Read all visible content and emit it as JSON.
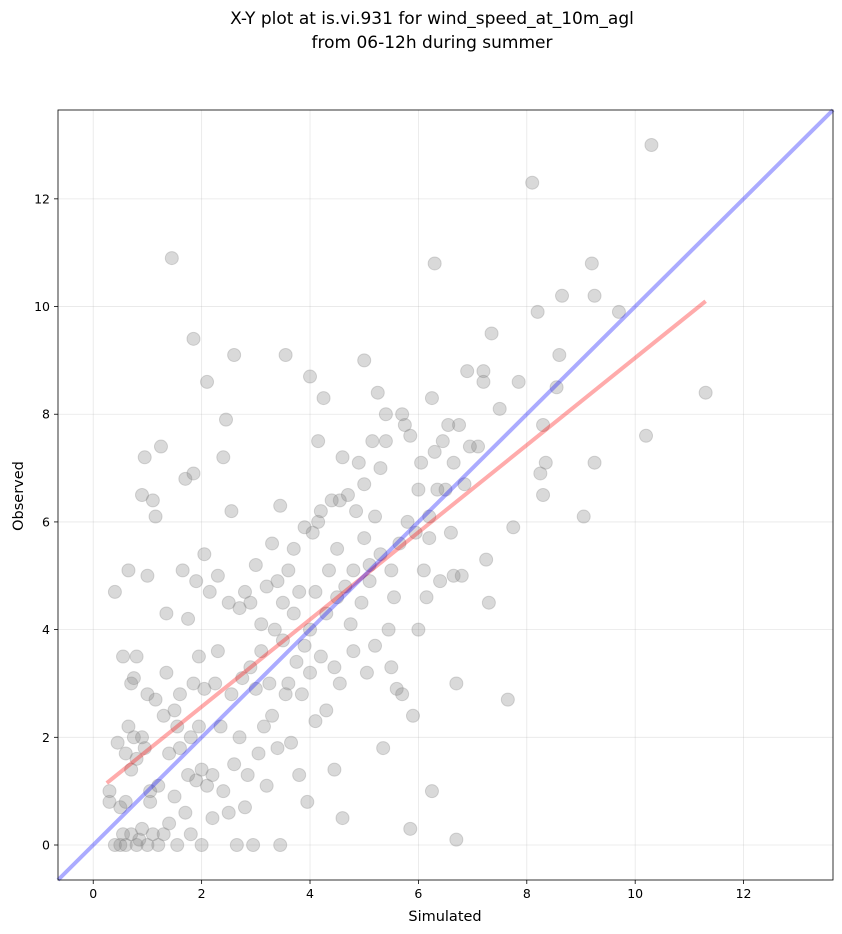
{
  "chart_data": {
    "type": "scatter",
    "title": [
      "X-Y plot at is.vi.931 for wind_speed_at_10m_agl",
      "from 06-12h during summer"
    ],
    "xlabel": "Simulated",
    "ylabel": "Observed",
    "xlim": [
      -0.65,
      13.65
    ],
    "ylim": [
      -0.65,
      13.65
    ],
    "xticks": [
      0,
      2,
      4,
      6,
      8,
      10,
      12
    ],
    "yticks": [
      0,
      2,
      4,
      6,
      8,
      10,
      12
    ],
    "grid": true,
    "point_color": "#808080",
    "points": [
      [
        0.3,
        1.0
      ],
      [
        0.3,
        0.8
      ],
      [
        0.4,
        0.0
      ],
      [
        0.4,
        4.7
      ],
      [
        0.45,
        1.9
      ],
      [
        0.5,
        0.7
      ],
      [
        0.5,
        0.0
      ],
      [
        0.55,
        0.2
      ],
      [
        0.55,
        3.5
      ],
      [
        0.6,
        0.8
      ],
      [
        0.6,
        0.0
      ],
      [
        0.6,
        1.7
      ],
      [
        0.65,
        5.1
      ],
      [
        0.65,
        2.2
      ],
      [
        0.7,
        1.4
      ],
      [
        0.7,
        0.2
      ],
      [
        0.7,
        3.0
      ],
      [
        0.75,
        3.1
      ],
      [
        0.75,
        2.0
      ],
      [
        0.8,
        0.0
      ],
      [
        0.8,
        3.5
      ],
      [
        0.8,
        1.6
      ],
      [
        0.85,
        0.1
      ],
      [
        0.9,
        6.5
      ],
      [
        0.9,
        2.0
      ],
      [
        0.9,
        0.3
      ],
      [
        0.95,
        7.2
      ],
      [
        0.95,
        1.8
      ],
      [
        1.0,
        2.8
      ],
      [
        1.0,
        0.0
      ],
      [
        1.0,
        5.0
      ],
      [
        1.05,
        1.0
      ],
      [
        1.05,
        0.8
      ],
      [
        1.1,
        0.2
      ],
      [
        1.1,
        6.4
      ],
      [
        1.15,
        6.1
      ],
      [
        1.15,
        2.7
      ],
      [
        1.2,
        1.1
      ],
      [
        1.2,
        0.0
      ],
      [
        1.25,
        7.4
      ],
      [
        1.3,
        2.4
      ],
      [
        1.3,
        0.2
      ],
      [
        1.35,
        4.3
      ],
      [
        1.35,
        3.2
      ],
      [
        1.4,
        1.7
      ],
      [
        1.4,
        0.4
      ],
      [
        1.45,
        10.9
      ],
      [
        1.5,
        2.5
      ],
      [
        1.5,
        0.9
      ],
      [
        1.55,
        0.0
      ],
      [
        1.55,
        2.2
      ],
      [
        1.6,
        1.8
      ],
      [
        1.6,
        2.8
      ],
      [
        1.65,
        5.1
      ],
      [
        1.7,
        0.6
      ],
      [
        1.7,
        6.8
      ],
      [
        1.75,
        4.2
      ],
      [
        1.75,
        1.3
      ],
      [
        1.8,
        2.0
      ],
      [
        1.8,
        0.2
      ],
      [
        1.85,
        6.9
      ],
      [
        1.85,
        9.4
      ],
      [
        1.85,
        3.0
      ],
      [
        1.9,
        1.2
      ],
      [
        1.9,
        4.9
      ],
      [
        1.95,
        3.5
      ],
      [
        1.95,
        2.2
      ],
      [
        2.0,
        0.0
      ],
      [
        2.0,
        1.4
      ],
      [
        2.05,
        5.4
      ],
      [
        2.05,
        2.9
      ],
      [
        2.1,
        1.1
      ],
      [
        2.1,
        8.6
      ],
      [
        2.15,
        4.7
      ],
      [
        2.2,
        0.5
      ],
      [
        2.2,
        1.3
      ],
      [
        2.25,
        3.0
      ],
      [
        2.3,
        5.0
      ],
      [
        2.3,
        3.6
      ],
      [
        2.35,
        2.2
      ],
      [
        2.4,
        1.0
      ],
      [
        2.4,
        7.2
      ],
      [
        2.45,
        7.9
      ],
      [
        2.5,
        0.6
      ],
      [
        2.5,
        4.5
      ],
      [
        2.55,
        2.8
      ],
      [
        2.55,
        6.2
      ],
      [
        2.6,
        9.1
      ],
      [
        2.6,
        1.5
      ],
      [
        2.65,
        0.0
      ],
      [
        2.7,
        2.0
      ],
      [
        2.7,
        4.4
      ],
      [
        2.75,
        3.1
      ],
      [
        2.8,
        0.7
      ],
      [
        2.8,
        4.7
      ],
      [
        2.85,
        1.3
      ],
      [
        2.9,
        3.3
      ],
      [
        2.9,
        4.5
      ],
      [
        2.95,
        0.0
      ],
      [
        3.0,
        5.2
      ],
      [
        3.0,
        2.9
      ],
      [
        3.05,
        1.7
      ],
      [
        3.1,
        3.6
      ],
      [
        3.1,
        4.1
      ],
      [
        3.15,
        2.2
      ],
      [
        3.2,
        1.1
      ],
      [
        3.2,
        4.8
      ],
      [
        3.25,
        3.0
      ],
      [
        3.3,
        5.6
      ],
      [
        3.3,
        2.4
      ],
      [
        3.35,
        4.0
      ],
      [
        3.4,
        4.9
      ],
      [
        3.4,
        1.8
      ],
      [
        3.45,
        0.0
      ],
      [
        3.45,
        6.3
      ],
      [
        3.5,
        3.8
      ],
      [
        3.5,
        4.5
      ],
      [
        3.55,
        9.1
      ],
      [
        3.55,
        2.8
      ],
      [
        3.6,
        3.0
      ],
      [
        3.6,
        5.1
      ],
      [
        3.65,
        1.9
      ],
      [
        3.7,
        4.3
      ],
      [
        3.7,
        5.5
      ],
      [
        3.75,
        3.4
      ],
      [
        3.8,
        1.3
      ],
      [
        3.8,
        4.7
      ],
      [
        3.85,
        2.8
      ],
      [
        3.9,
        5.9
      ],
      [
        3.9,
        3.7
      ],
      [
        3.95,
        0.8
      ],
      [
        4.0,
        4.0
      ],
      [
        4.0,
        8.7
      ],
      [
        4.0,
        3.2
      ],
      [
        4.05,
        5.8
      ],
      [
        4.1,
        2.3
      ],
      [
        4.1,
        4.7
      ],
      [
        4.15,
        6.0
      ],
      [
        4.15,
        7.5
      ],
      [
        4.2,
        3.5
      ],
      [
        4.2,
        6.2
      ],
      [
        4.25,
        8.3
      ],
      [
        4.3,
        4.3
      ],
      [
        4.3,
        2.5
      ],
      [
        4.35,
        5.1
      ],
      [
        4.4,
        6.4
      ],
      [
        4.45,
        3.3
      ],
      [
        4.45,
        1.4
      ],
      [
        4.5,
        5.5
      ],
      [
        4.5,
        4.6
      ],
      [
        4.55,
        6.4
      ],
      [
        4.55,
        3.0
      ],
      [
        4.6,
        7.2
      ],
      [
        4.6,
        0.5
      ],
      [
        4.65,
        4.8
      ],
      [
        4.7,
        6.5
      ],
      [
        4.75,
        4.1
      ],
      [
        4.8,
        3.6
      ],
      [
        4.8,
        5.1
      ],
      [
        4.85,
        6.2
      ],
      [
        4.9,
        7.1
      ],
      [
        4.95,
        4.5
      ],
      [
        5.0,
        5.7
      ],
      [
        5.0,
        6.7
      ],
      [
        5.0,
        9.0
      ],
      [
        5.05,
        3.2
      ],
      [
        5.1,
        5.2
      ],
      [
        5.1,
        4.9
      ],
      [
        5.15,
        7.5
      ],
      [
        5.2,
        6.1
      ],
      [
        5.2,
        3.7
      ],
      [
        5.25,
        8.4
      ],
      [
        5.3,
        7.0
      ],
      [
        5.3,
        5.4
      ],
      [
        5.35,
        1.8
      ],
      [
        5.4,
        8.0
      ],
      [
        5.4,
        7.5
      ],
      [
        5.45,
        4.0
      ],
      [
        5.5,
        5.1
      ],
      [
        5.5,
        3.3
      ],
      [
        5.55,
        4.6
      ],
      [
        5.6,
        2.9
      ],
      [
        5.65,
        5.6
      ],
      [
        5.7,
        8.0
      ],
      [
        5.7,
        2.8
      ],
      [
        5.75,
        7.8
      ],
      [
        5.8,
        6.0
      ],
      [
        5.85,
        0.3
      ],
      [
        5.85,
        7.6
      ],
      [
        5.9,
        2.4
      ],
      [
        5.95,
        5.8
      ],
      [
        6.0,
        4.0
      ],
      [
        6.0,
        6.6
      ],
      [
        6.05,
        7.1
      ],
      [
        6.1,
        5.1
      ],
      [
        6.15,
        4.6
      ],
      [
        6.2,
        5.7
      ],
      [
        6.2,
        6.1
      ],
      [
        6.25,
        8.3
      ],
      [
        6.25,
        1.0
      ],
      [
        6.3,
        10.8
      ],
      [
        6.3,
        7.3
      ],
      [
        6.35,
        6.6
      ],
      [
        6.4,
        4.9
      ],
      [
        6.45,
        7.5
      ],
      [
        6.5,
        6.6
      ],
      [
        6.55,
        7.8
      ],
      [
        6.6,
        5.8
      ],
      [
        6.65,
        5.0
      ],
      [
        6.65,
        7.1
      ],
      [
        6.7,
        3.0
      ],
      [
        6.7,
        0.1
      ],
      [
        6.75,
        7.8
      ],
      [
        6.8,
        5.0
      ],
      [
        6.85,
        6.7
      ],
      [
        6.9,
        8.8
      ],
      [
        6.95,
        7.4
      ],
      [
        7.1,
        7.4
      ],
      [
        7.2,
        8.8
      ],
      [
        7.2,
        8.6
      ],
      [
        7.25,
        5.3
      ],
      [
        7.3,
        4.5
      ],
      [
        7.35,
        9.5
      ],
      [
        7.5,
        8.1
      ],
      [
        7.65,
        2.7
      ],
      [
        7.75,
        5.9
      ],
      [
        7.85,
        8.6
      ],
      [
        8.1,
        12.3
      ],
      [
        8.2,
        9.9
      ],
      [
        8.25,
        6.9
      ],
      [
        8.3,
        6.5
      ],
      [
        8.3,
        7.8
      ],
      [
        8.35,
        7.1
      ],
      [
        8.55,
        8.5
      ],
      [
        8.6,
        9.1
      ],
      [
        8.65,
        10.2
      ],
      [
        9.05,
        6.1
      ],
      [
        9.2,
        10.8
      ],
      [
        9.25,
        7.1
      ],
      [
        9.25,
        10.2
      ],
      [
        9.7,
        9.9
      ],
      [
        10.2,
        7.6
      ],
      [
        10.3,
        13.0
      ],
      [
        11.3,
        8.4
      ]
    ],
    "reference_line": {
      "name": "",
      "color": "#0000ff",
      "x": [
        -0.65,
        13.65
      ],
      "y": [
        -0.65,
        13.65
      ]
    },
    "regression_line": {
      "name": "",
      "color": "#ff0000",
      "x": [
        0.25,
        11.3
      ],
      "y": [
        1.15,
        10.1
      ]
    }
  }
}
